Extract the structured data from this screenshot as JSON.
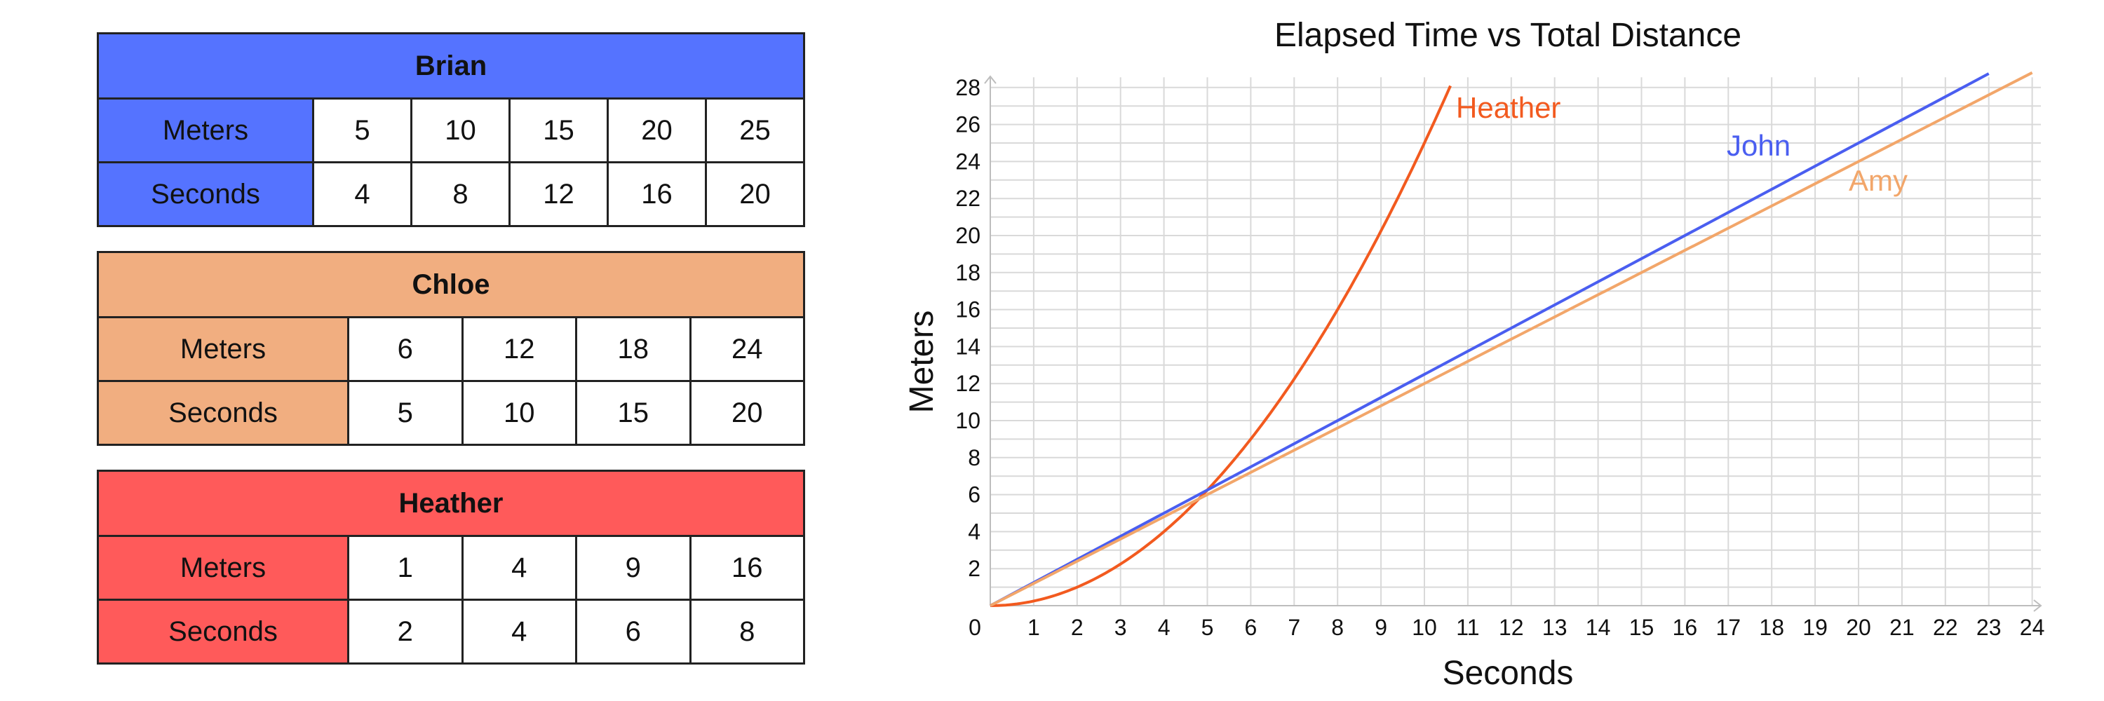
{
  "tables": [
    {
      "name": "Brian",
      "color": "#5573FF",
      "meters_label": "Meters",
      "seconds_label": "Seconds",
      "meters": [
        "5",
        "10",
        "15",
        "20",
        "25"
      ],
      "seconds": [
        "4",
        "8",
        "12",
        "16",
        "20"
      ]
    },
    {
      "name": "Chloe",
      "color": "#F1AE80",
      "meters_label": "Meters",
      "seconds_label": "Seconds",
      "meters": [
        "6",
        "12",
        "18",
        "24"
      ],
      "seconds": [
        "5",
        "10",
        "15",
        "20"
      ]
    },
    {
      "name": "Heather",
      "color": "#FF5A5A",
      "meters_label": "Meters",
      "seconds_label": "Seconds",
      "meters": [
        "1",
        "4",
        "9",
        "16"
      ],
      "seconds": [
        "2",
        "4",
        "6",
        "8"
      ]
    }
  ],
  "chart_data": {
    "type": "line",
    "title": "Elapsed Time vs Total Distance",
    "xlabel": "Seconds",
    "ylabel": "Meters",
    "xlim": [
      0,
      24
    ],
    "ylim": [
      0,
      28
    ],
    "grid": true,
    "x_ticks": [
      "0",
      "1",
      "2",
      "3",
      "4",
      "5",
      "6",
      "7",
      "8",
      "9",
      "10",
      "11",
      "12",
      "13",
      "14",
      "15",
      "16",
      "17",
      "18",
      "19",
      "20",
      "21",
      "22",
      "23",
      "24"
    ],
    "y_ticks": [
      "2",
      "4",
      "6",
      "8",
      "10",
      "12",
      "14",
      "16",
      "18",
      "20",
      "22",
      "24",
      "26",
      "28"
    ],
    "series": [
      {
        "name": "Heather",
        "color": "#F25A1F",
        "function": "quadratic",
        "points": [
          [
            0,
            0
          ],
          [
            2,
            1
          ],
          [
            4,
            4
          ],
          [
            6,
            9
          ],
          [
            8,
            16
          ],
          [
            10,
            25
          ],
          [
            10.6,
            28.1
          ]
        ]
      },
      {
        "name": "John",
        "color": "#4A5EF0",
        "function": "linear",
        "points": [
          [
            0,
            0
          ],
          [
            23,
            28.75
          ]
        ]
      },
      {
        "name": "Amy",
        "color": "#F2A66A",
        "function": "linear",
        "points": [
          [
            0,
            0
          ],
          [
            24,
            28.8
          ]
        ]
      }
    ]
  }
}
